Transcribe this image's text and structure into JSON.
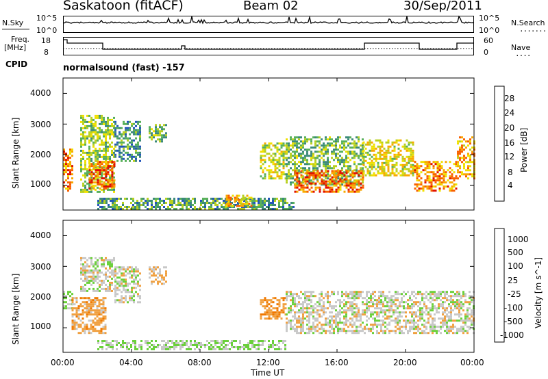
{
  "header": {
    "station": "Saskatoon (fitACF)",
    "beam": "Beam 02",
    "date": "30/Sep/2011",
    "program": "normalsound (fast) -157"
  },
  "left_labels": {
    "nsky": "N.Sky",
    "freq": "Freq.",
    "freq_unit": "[MHz]",
    "cpid": "CPID"
  },
  "right_labels": {
    "nsearch": "N.Search",
    "nave": "Nave",
    "dots": "........",
    "dots_short": "...."
  },
  "noise_axis": {
    "left_ticks": [
      "10^5",
      "10^0"
    ],
    "right_ticks": [
      "10^5",
      "10^0"
    ]
  },
  "freq_axis": {
    "left_ticks": [
      "18",
      "8"
    ],
    "right_ticks": [
      "60",
      "0"
    ]
  },
  "colors": {
    "power_scale": [
      "#0000ff",
      "#2255bb",
      "#3c8a7a",
      "#58b05a",
      "#b8d020",
      "#f0e000",
      "#f8a800",
      "#f86000",
      "#e01000"
    ],
    "velocity_scale": [
      "#1c2eb8",
      "#2e6aa8",
      "#3a8a3c",
      "#6ad03a",
      "#c8c8c8",
      "#f0a040",
      "#f07800",
      "#f04000",
      "#e01000"
    ]
  },
  "chart_data": [
    {
      "type": "heatmap",
      "title": "",
      "xlabel": "",
      "ylabel": "Slant Range [km]",
      "x_ticks": [
        "00:00",
        "04:00",
        "08:00",
        "12:00",
        "16:00",
        "20:00",
        "00:00"
      ],
      "y_ticks": [
        "1000",
        "2000",
        "3000",
        "4000"
      ],
      "xlim": [
        0,
        24
      ],
      "ylim": [
        200,
        4500
      ],
      "colorbar": {
        "label": "Power [dB]",
        "ticks": [
          "4",
          "8",
          "12",
          "16",
          "20",
          "24",
          "28"
        ],
        "range": [
          0,
          30
        ]
      },
      "regions": [
        {
          "t0": 0.0,
          "t1": 0.5,
          "r0": 800,
          "r1": 2200,
          "v": 24
        },
        {
          "t0": 1.0,
          "t1": 3.0,
          "r0": 800,
          "r1": 3300,
          "v": 14
        },
        {
          "t0": 1.5,
          "t1": 3.0,
          "r0": 900,
          "r1": 1800,
          "v": 26
        },
        {
          "t0": 3.0,
          "t1": 4.5,
          "r0": 1800,
          "r1": 3100,
          "v": 8
        },
        {
          "t0": 5.0,
          "t1": 6.0,
          "r0": 2400,
          "r1": 3000,
          "v": 12
        },
        {
          "t0": 2.0,
          "t1": 13.5,
          "r0": 250,
          "r1": 600,
          "v": 10
        },
        {
          "t0": 9.5,
          "t1": 11.0,
          "r0": 300,
          "r1": 700,
          "v": 22
        },
        {
          "t0": 11.5,
          "t1": 13.0,
          "r0": 1200,
          "r1": 2400,
          "v": 16
        },
        {
          "t0": 13.0,
          "t1": 17.5,
          "r0": 1000,
          "r1": 2600,
          "v": 12
        },
        {
          "t0": 13.5,
          "t1": 17.5,
          "r0": 800,
          "r1": 1500,
          "v": 26
        },
        {
          "t0": 17.5,
          "t1": 20.5,
          "r0": 1300,
          "r1": 2500,
          "v": 18
        },
        {
          "t0": 20.5,
          "t1": 23.0,
          "r0": 800,
          "r1": 1800,
          "v": 24
        },
        {
          "t0": 23.0,
          "t1": 24.0,
          "r0": 1200,
          "r1": 2600,
          "v": 22
        }
      ]
    },
    {
      "type": "heatmap",
      "title": "",
      "xlabel": "Time UT",
      "ylabel": "Slant Range [km]",
      "x_ticks": [
        "00:00",
        "04:00",
        "08:00",
        "12:00",
        "16:00",
        "20:00",
        "00:00"
      ],
      "y_ticks": [
        "1000",
        "2000",
        "3000",
        "4000"
      ],
      "xlim": [
        0,
        24
      ],
      "ylim": [
        200,
        4500
      ],
      "colorbar": {
        "label": "Velocity [m s^-1]",
        "ticks": [
          "1000",
          "500",
          "100",
          "25",
          "-25",
          "-100",
          "-500",
          "-1000"
        ],
        "range": [
          -1200,
          1200
        ]
      },
      "regions": [
        {
          "t0": 0.0,
          "t1": 0.5,
          "r0": 1600,
          "r1": 2200,
          "v": 200
        },
        {
          "t0": 0.5,
          "t1": 2.5,
          "r0": 800,
          "r1": 2000,
          "v": -300
        },
        {
          "t0": 1.0,
          "t1": 3.0,
          "r0": 2200,
          "r1": 3300,
          "v": 0
        },
        {
          "t0": 3.0,
          "t1": 4.5,
          "r0": 1800,
          "r1": 3000,
          "v": 0
        },
        {
          "t0": 5.0,
          "t1": 6.0,
          "r0": 2400,
          "r1": 3000,
          "v": -200
        },
        {
          "t0": 2.0,
          "t1": 13.0,
          "r0": 300,
          "r1": 600,
          "v": 150
        },
        {
          "t0": 11.5,
          "t1": 13.0,
          "r0": 1300,
          "r1": 2000,
          "v": -400
        },
        {
          "t0": 13.0,
          "t1": 24.0,
          "r0": 800,
          "r1": 2200,
          "v": 0
        }
      ]
    }
  ]
}
